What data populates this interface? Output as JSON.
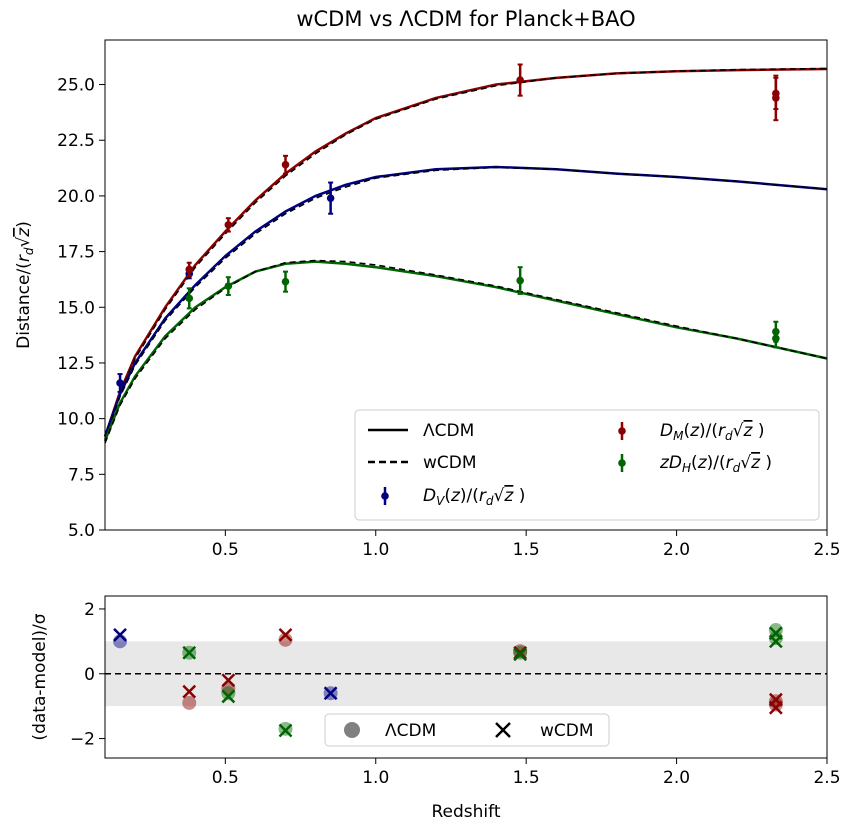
{
  "chart_data": [
    {
      "type": "line",
      "title": "wCDM vs ΛCDM for Planck+BAO",
      "xlabel": "",
      "ylabel": "Distance/(r_d√z)",
      "ylabel_parts": [
        "Distance/(",
        "r",
        "d",
        "√",
        "z",
        ")"
      ],
      "xlim": [
        0.1,
        2.5
      ],
      "ylim": [
        5.0,
        27.0
      ],
      "xticks": [
        "0.5",
        "1.0",
        "1.5",
        "2.0",
        "2.5"
      ],
      "yticks": [
        "5.0",
        "7.5",
        "10.0",
        "12.5",
        "15.0",
        "17.5",
        "20.0",
        "22.5",
        "25.0"
      ],
      "colors": {
        "DV": "#000080",
        "DM": "#8b0000",
        "DH": "#006400"
      },
      "legend_position": "lower-right",
      "legend": {
        "lcdm": "ΛCDM",
        "wcdm": "wCDM",
        "dv": "D_V(z)/(r_d√z )",
        "dm": "D_M(z)/(r_d√z )",
        "dh": "zD_H(z)/(r_d√z )"
      },
      "model_curves": {
        "DM": {
          "z": [
            0.1,
            0.15,
            0.2,
            0.3,
            0.4,
            0.5,
            0.6,
            0.7,
            0.8,
            0.9,
            1.0,
            1.2,
            1.4,
            1.6,
            1.8,
            2.0,
            2.2,
            2.5
          ],
          "lcdm": [
            9.2,
            11.2,
            12.8,
            15.0,
            16.9,
            18.4,
            19.8,
            21.0,
            22.0,
            22.8,
            23.5,
            24.4,
            25.0,
            25.3,
            25.5,
            25.6,
            25.65,
            25.7
          ],
          "wcdm": [
            9.1,
            11.1,
            12.7,
            14.9,
            16.8,
            18.3,
            19.7,
            20.9,
            21.9,
            22.75,
            23.45,
            24.35,
            24.95,
            25.3,
            25.5,
            25.6,
            25.67,
            25.72
          ]
        },
        "DV": {
          "z": [
            0.1,
            0.15,
            0.2,
            0.3,
            0.4,
            0.5,
            0.6,
            0.7,
            0.8,
            0.9,
            1.0,
            1.2,
            1.4,
            1.6,
            1.8,
            2.0,
            2.2,
            2.5
          ],
          "lcdm": [
            9.2,
            11.1,
            12.5,
            14.5,
            16.0,
            17.3,
            18.4,
            19.3,
            20.0,
            20.5,
            20.85,
            21.2,
            21.3,
            21.2,
            21.0,
            20.85,
            20.65,
            20.3
          ],
          "wcdm": [
            9.1,
            11.0,
            12.4,
            14.4,
            15.9,
            17.2,
            18.3,
            19.2,
            19.9,
            20.4,
            20.8,
            21.15,
            21.28,
            21.2,
            21.0,
            20.85,
            20.65,
            20.3
          ]
        },
        "DH": {
          "z": [
            0.1,
            0.15,
            0.2,
            0.3,
            0.4,
            0.5,
            0.6,
            0.7,
            0.8,
            0.9,
            1.0,
            1.2,
            1.4,
            1.6,
            1.8,
            2.0,
            2.2,
            2.5
          ],
          "lcdm": [
            9.0,
            10.7,
            11.9,
            13.7,
            15.0,
            15.9,
            16.6,
            16.95,
            17.05,
            16.95,
            16.8,
            16.4,
            15.9,
            15.3,
            14.7,
            14.1,
            13.6,
            12.7
          ],
          "wcdm": [
            8.9,
            10.6,
            11.8,
            13.6,
            14.9,
            15.85,
            16.6,
            17.0,
            17.1,
            17.05,
            16.9,
            16.45,
            15.95,
            15.35,
            14.75,
            14.15,
            13.6,
            12.7
          ]
        }
      },
      "data_points": {
        "DV": [
          {
            "z": 0.15,
            "y": 11.6,
            "err": 0.4
          },
          {
            "z": 0.38,
            "y": 16.5,
            "err": 0.2
          },
          {
            "z": 0.85,
            "y": 19.9,
            "err": 0.7
          }
        ],
        "DM": [
          {
            "z": 0.38,
            "y": 16.7,
            "err": 0.3
          },
          {
            "z": 0.51,
            "y": 18.7,
            "err": 0.3
          },
          {
            "z": 0.7,
            "y": 21.4,
            "err": 0.4
          },
          {
            "z": 1.48,
            "y": 25.2,
            "err": 0.7
          },
          {
            "z": 2.33,
            "y": 24.6,
            "err": 0.7
          },
          {
            "z": 2.33,
            "y": 24.4,
            "err": 1.0
          }
        ],
        "DH": [
          {
            "z": 0.38,
            "y": 15.4,
            "err": 0.45
          },
          {
            "z": 0.51,
            "y": 15.95,
            "err": 0.4
          },
          {
            "z": 0.7,
            "y": 16.15,
            "err": 0.45
          },
          {
            "z": 1.48,
            "y": 16.2,
            "err": 0.6
          },
          {
            "z": 2.33,
            "y": 13.9,
            "err": 0.45
          },
          {
            "z": 2.33,
            "y": 13.6,
            "err": 0.4
          }
        ]
      }
    },
    {
      "type": "scatter",
      "title": "",
      "xlabel": "Redshift",
      "ylabel": "(data-model)/σ",
      "xlim": [
        0.1,
        2.5
      ],
      "ylim": [
        -2.6,
        2.4
      ],
      "xticks": [
        "0.5",
        "1.0",
        "1.5",
        "2.0",
        "2.5"
      ],
      "yticks": [
        "−2",
        "0",
        "2"
      ],
      "band": [
        -1,
        1
      ],
      "legend_position": "lower-center",
      "legend": {
        "lcdm": "ΛCDM",
        "wcdm": "wCDM"
      },
      "lcdm_points": [
        {
          "z": 0.15,
          "v": 1.0,
          "series": "DV"
        },
        {
          "z": 0.38,
          "v": -0.9,
          "series": "DM"
        },
        {
          "z": 0.38,
          "v": 0.65,
          "series": "DH"
        },
        {
          "z": 0.51,
          "v": -0.45,
          "series": "DM"
        },
        {
          "z": 0.51,
          "v": -0.6,
          "series": "DH"
        },
        {
          "z": 0.7,
          "v": 1.05,
          "series": "DM"
        },
        {
          "z": 0.7,
          "v": -1.7,
          "series": "DH"
        },
        {
          "z": 0.85,
          "v": -0.6,
          "series": "DV"
        },
        {
          "z": 1.48,
          "v": 0.7,
          "series": "DM"
        },
        {
          "z": 1.48,
          "v": 0.65,
          "series": "DH"
        },
        {
          "z": 2.33,
          "v": -0.85,
          "series": "DM"
        },
        {
          "z": 2.33,
          "v": -0.95,
          "series": "DM"
        },
        {
          "z": 2.33,
          "v": 1.35,
          "series": "DH"
        },
        {
          "z": 2.33,
          "v": 1.1,
          "series": "DH"
        }
      ],
      "wcdm_points": [
        {
          "z": 0.15,
          "v": 1.2,
          "series": "DV"
        },
        {
          "z": 0.38,
          "v": -0.55,
          "series": "DM"
        },
        {
          "z": 0.38,
          "v": 0.65,
          "series": "DH"
        },
        {
          "z": 0.51,
          "v": -0.2,
          "series": "DM"
        },
        {
          "z": 0.51,
          "v": -0.7,
          "series": "DH"
        },
        {
          "z": 0.7,
          "v": 1.2,
          "series": "DM"
        },
        {
          "z": 0.7,
          "v": -1.75,
          "series": "DH"
        },
        {
          "z": 0.85,
          "v": -0.6,
          "series": "DV"
        },
        {
          "z": 1.48,
          "v": 0.65,
          "series": "DM"
        },
        {
          "z": 1.48,
          "v": 0.6,
          "series": "DH"
        },
        {
          "z": 2.33,
          "v": -0.8,
          "series": "DM"
        },
        {
          "z": 2.33,
          "v": -1.05,
          "series": "DM"
        },
        {
          "z": 2.33,
          "v": 1.25,
          "series": "DH"
        },
        {
          "z": 2.33,
          "v": 1.0,
          "series": "DH"
        }
      ]
    }
  ]
}
